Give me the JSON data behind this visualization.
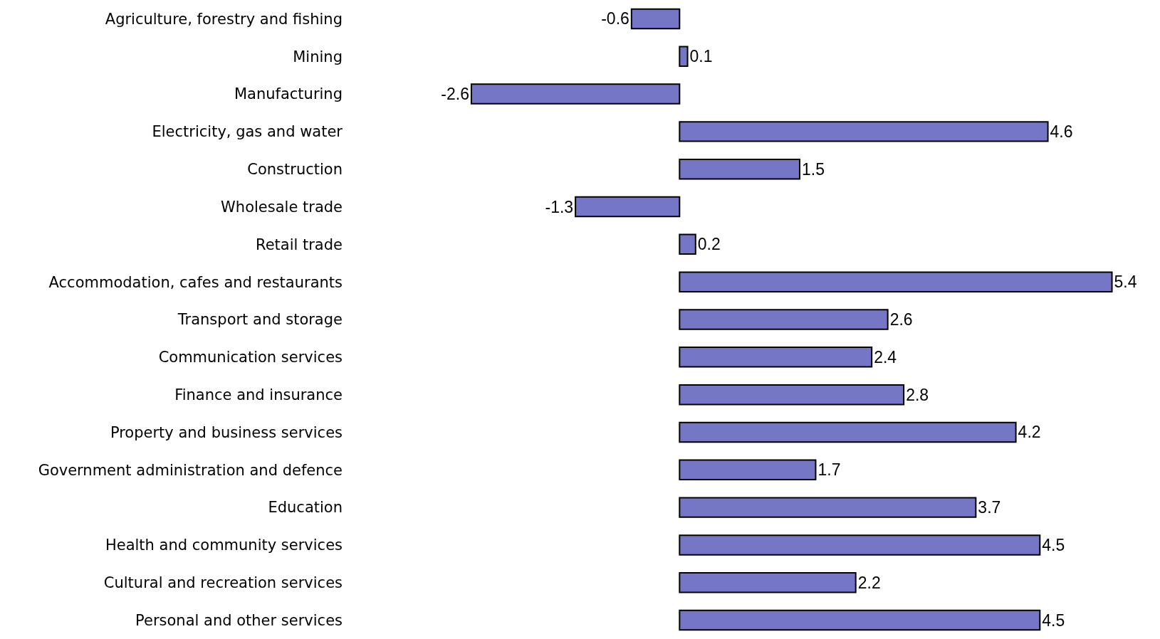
{
  "chart_data": {
    "type": "bar",
    "orientation": "horizontal",
    "categories": [
      "Agriculture, forestry and fishing",
      "Mining",
      "Manufacturing",
      "Electricity, gas and water",
      "Construction",
      "Wholesale trade",
      "Retail trade",
      "Accommodation, cafes and restaurants",
      "Transport and storage",
      "Communication services",
      "Finance and insurance",
      "Property and business services",
      "Government administration and defence",
      "Education",
      "Health and community services",
      "Cultural and recreation services",
      "Personal and other services"
    ],
    "values": [
      -0.6,
      0.1,
      -2.6,
      4.6,
      1.5,
      -1.3,
      0.2,
      5.4,
      2.6,
      2.4,
      2.8,
      4.2,
      1.7,
      3.7,
      4.5,
      2.2,
      4.5
    ],
    "color": "#7676c6",
    "data_labels": true,
    "tick_labels": "y"
  }
}
